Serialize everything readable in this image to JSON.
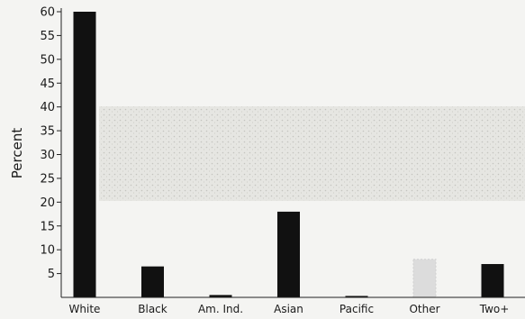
{
  "chart_data": {
    "type": "bar",
    "title": "",
    "xlabel": "",
    "ylabel": "Percent",
    "ylim": [
      0,
      60
    ],
    "yticks": [
      5,
      10,
      15,
      20,
      25,
      30,
      35,
      40,
      45,
      50,
      55,
      60
    ],
    "grid": false,
    "legend": "none",
    "categories": [
      "White",
      "Black",
      "Am. Ind.",
      "Asian",
      "Pacific",
      "Other",
      "Two+"
    ],
    "values": [
      60,
      6.5,
      0.5,
      18,
      0.3,
      8,
      7
    ],
    "bar_color": "#111111",
    "other_bar_color": "#dcdcdc"
  }
}
